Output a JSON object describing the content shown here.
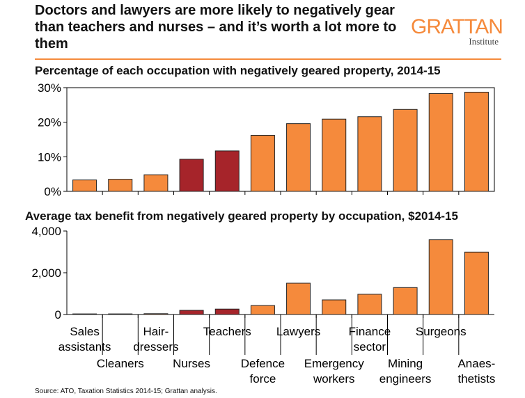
{
  "header": {
    "title": "Doctors and lawyers are more likely to negatively gear than teachers and nurses – and it’s worth a lot more to them",
    "logo_name": "GRATTAN",
    "logo_sub": "Institute"
  },
  "source": "Source: ATO, Taxation Statistics 2014-15; Grattan analysis.",
  "colors": {
    "highlight": "#a6242a",
    "default": "#f58a3c",
    "accent": "#f58a3c"
  },
  "chart_data": [
    {
      "type": "bar",
      "title": "Percentage of each occupation with negatively geared property, 2014-15",
      "categories": [
        "Sales assistants",
        "Cleaners",
        "Hair-dressers",
        "Nurses",
        "Teachers",
        "Defence force",
        "Lawyers",
        "Emergency workers",
        "Finance sector",
        "Mining engineers",
        "Surgeons",
        "Anaes-thetists"
      ],
      "values": [
        3.3,
        3.5,
        4.8,
        9.3,
        11.7,
        16.2,
        19.6,
        20.9,
        21.6,
        23.7,
        28.3,
        28.7
      ],
      "highlight": [
        false,
        false,
        false,
        true,
        true,
        false,
        false,
        false,
        false,
        false,
        false,
        false
      ],
      "ylim": [
        0,
        30
      ],
      "yticks": [
        0,
        10,
        20,
        30
      ],
      "ytick_labels": [
        "0%",
        "10%",
        "20%",
        "30%"
      ],
      "grid": false
    },
    {
      "type": "bar",
      "title": "Average tax benefit from negatively geared property by occupation, $2014-15",
      "categories": [
        "Sales assistants",
        "Cleaners",
        "Hair-dressers",
        "Nurses",
        "Teachers",
        "Defence force",
        "Lawyers",
        "Emergency workers",
        "Finance sector",
        "Mining engineers",
        "Surgeons",
        "Anaes-thetists"
      ],
      "values": [
        30,
        30,
        40,
        200,
        260,
        430,
        1500,
        700,
        970,
        1290,
        3580,
        2990
      ],
      "highlight": [
        false,
        false,
        false,
        true,
        true,
        false,
        false,
        false,
        false,
        false,
        false,
        false
      ],
      "ylim": [
        0,
        4000
      ],
      "yticks": [
        0,
        2000,
        4000
      ],
      "ytick_labels": [
        "0",
        "2,000",
        "4,000"
      ],
      "grid": false
    }
  ],
  "xaxis": {
    "labels": [
      {
        "lines": [
          "Sales",
          "assistants"
        ],
        "row": "top"
      },
      {
        "lines": [
          "Cleaners"
        ],
        "row": "bottom"
      },
      {
        "lines": [
          "Hair-",
          "dressers"
        ],
        "row": "top"
      },
      {
        "lines": [
          "Nurses"
        ],
        "row": "bottom"
      },
      {
        "lines": [
          "Teachers"
        ],
        "row": "top"
      },
      {
        "lines": [
          "Defence",
          "force"
        ],
        "row": "bottom"
      },
      {
        "lines": [
          "Lawyers"
        ],
        "row": "top"
      },
      {
        "lines": [
          "Emergency",
          "workers"
        ],
        "row": "bottom"
      },
      {
        "lines": [
          "Finance",
          "sector"
        ],
        "row": "top"
      },
      {
        "lines": [
          "Mining",
          "engineers"
        ],
        "row": "bottom"
      },
      {
        "lines": [
          "Surgeons"
        ],
        "row": "top"
      },
      {
        "lines": [
          "Anaes-",
          "thetists"
        ],
        "row": "bottom"
      }
    ]
  }
}
